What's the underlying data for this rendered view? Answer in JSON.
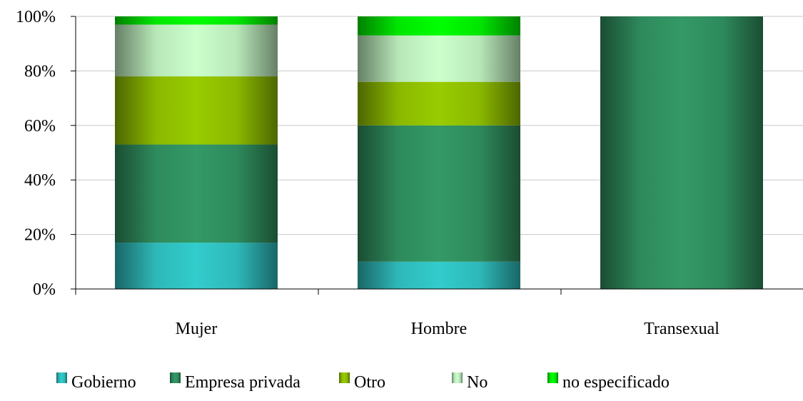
{
  "chart_data": {
    "type": "bar",
    "stacked": true,
    "normalized": true,
    "categories": [
      "Mujer",
      "Hombre",
      "Transexual"
    ],
    "series": [
      {
        "name": "Gobierno",
        "values": [
          17,
          10,
          0
        ],
        "color": "#33cccc"
      },
      {
        "name": "Empresa privada",
        "values": [
          36,
          50,
          100
        ],
        "color": "#339966"
      },
      {
        "name": "Otro",
        "values": [
          25,
          16,
          0
        ],
        "color": "#99cc00"
      },
      {
        "name": "No",
        "values": [
          19,
          17,
          0
        ],
        "color": "#ccffcc"
      },
      {
        "name": "no especificado",
        "values": [
          3,
          7,
          0
        ],
        "color": "#00ff00"
      }
    ],
    "ylim": [
      0,
      100
    ],
    "yticks": [
      "0%",
      "20%",
      "40%",
      "60%",
      "80%",
      "100%"
    ],
    "grid": true,
    "legend_position": "bottom"
  }
}
